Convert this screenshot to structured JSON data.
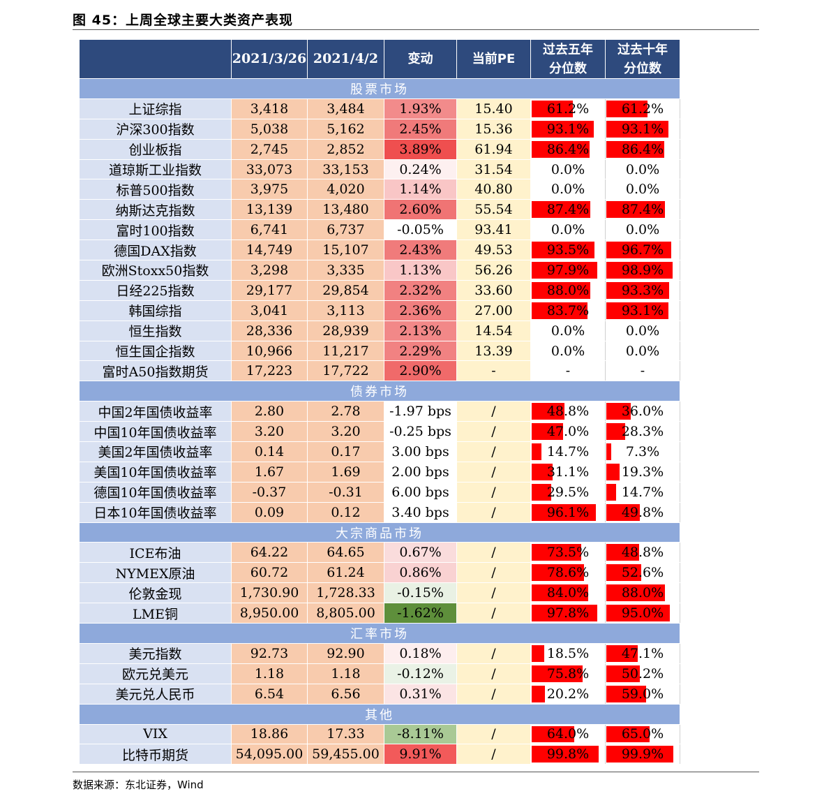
{
  "figure_title": "图 45：上周全球主要大类资产表现",
  "source": "数据来源：东北证券，Wind",
  "headers": {
    "name": "",
    "date1": "2021/3/26",
    "date2": "2021/4/2",
    "change": "变动",
    "pe": "当前PE",
    "pct5_line1": "过去五年",
    "pct5_line2": "分位数",
    "pct10_line1": "过去十年",
    "pct10_line2": "分位数"
  },
  "colors": {
    "header_bg": "#2e4a7d",
    "section_bg": "#8ea9db",
    "name_bg": "#d9e1f2",
    "value_bg": "#f8cbad",
    "pe_bg": "#fff2cc",
    "bar": "#ff0000"
  },
  "sections": [
    {
      "title": "股票市场",
      "rows": [
        {
          "name": "上证综指",
          "v1": "3,418",
          "v2": "3,484",
          "chg": "1.93%",
          "chg_color": "#f28b8b",
          "pe": "15.40",
          "p5": "61.2%",
          "p5v": 0.612,
          "p10": "61.2%",
          "p10v": 0.612
        },
        {
          "name": "沪深300指数",
          "v1": "5,038",
          "v2": "5,162",
          "chg": "2.45%",
          "chg_color": "#f07a7a",
          "pe": "15.36",
          "p5": "93.1%",
          "p5v": 0.931,
          "p10": "93.1%",
          "p10v": 0.931
        },
        {
          "name": "创业板指",
          "v1": "2,745",
          "v2": "2,852",
          "chg": "3.89%",
          "chg_color": "#ef4f4f",
          "pe": "61.94",
          "p5": "86.4%",
          "p5v": 0.864,
          "p10": "86.4%",
          "p10v": 0.864
        },
        {
          "name": "道琼斯工业指数",
          "v1": "33,073",
          "v2": "33,153",
          "chg": "0.24%",
          "chg_color": "#fdf0f0",
          "pe": "31.54",
          "p5": "0.0%",
          "p5v": 0,
          "p10": "0.0%",
          "p10v": 0
        },
        {
          "name": "标普500指数",
          "v1": "3,975",
          "v2": "4,020",
          "chg": "1.14%",
          "chg_color": "#f9c6c6",
          "pe": "40.80",
          "p5": "0.0%",
          "p5v": 0,
          "p10": "0.0%",
          "p10v": 0
        },
        {
          "name": "纳斯达克指数",
          "v1": "13,139",
          "v2": "13,480",
          "chg": "2.60%",
          "chg_color": "#f07474",
          "pe": "55.54",
          "p5": "87.4%",
          "p5v": 0.874,
          "p10": "87.4%",
          "p10v": 0.874
        },
        {
          "name": "富时100指数",
          "v1": "6,741",
          "v2": "6,737",
          "chg": "-0.05%",
          "chg_color": "#ffffff",
          "pe": "93.41",
          "p5": "0.0%",
          "p5v": 0,
          "p10": "0.0%",
          "p10v": 0
        },
        {
          "name": "德国DAX指数",
          "v1": "14,749",
          "v2": "15,107",
          "chg": "2.43%",
          "chg_color": "#f07b7b",
          "pe": "49.53",
          "p5": "93.5%",
          "p5v": 0.935,
          "p10": "96.7%",
          "p10v": 0.967
        },
        {
          "name": "欧洲Stoxx50指数",
          "v1": "3,298",
          "v2": "3,335",
          "chg": "1.13%",
          "chg_color": "#f9c7c7",
          "pe": "56.26",
          "p5": "97.9%",
          "p5v": 0.979,
          "p10": "98.9%",
          "p10v": 0.989
        },
        {
          "name": "日经225指数",
          "v1": "29,177",
          "v2": "29,854",
          "chg": "2.32%",
          "chg_color": "#f18181",
          "pe": "33.60",
          "p5": "88.0%",
          "p5v": 0.88,
          "p10": "93.3%",
          "p10v": 0.933
        },
        {
          "name": "韩国综指",
          "v1": "3,041",
          "v2": "3,113",
          "chg": "2.36%",
          "chg_color": "#f17f7f",
          "pe": "27.00",
          "p5": "83.7%",
          "p5v": 0.837,
          "p10": "93.1%",
          "p10v": 0.931
        },
        {
          "name": "恒生指数",
          "v1": "28,336",
          "v2": "28,939",
          "chg": "2.13%",
          "chg_color": "#f28888",
          "pe": "14.54",
          "p5": "0.0%",
          "p5v": 0,
          "p10": "0.0%",
          "p10v": 0
        },
        {
          "name": "恒生国企指数",
          "v1": "10,966",
          "v2": "11,217",
          "chg": "2.29%",
          "chg_color": "#f18282",
          "pe": "13.39",
          "p5": "0.0%",
          "p5v": 0,
          "p10": "0.0%",
          "p10v": 0
        },
        {
          "name": "富时A50指数期货",
          "v1": "17,223",
          "v2": "17,722",
          "chg": "2.90%",
          "chg_color": "#f06a6a",
          "pe": "-",
          "p5": "-",
          "p5v": 0,
          "p10": "-",
          "p10v": 0
        }
      ]
    },
    {
      "title": "债券市场",
      "rows": [
        {
          "name": "中国2年国债收益率",
          "v1": "2.80",
          "v2": "2.78",
          "chg": "-1.97 bps",
          "chg_color": "#ffffff",
          "pe": "/",
          "p5": "48.8%",
          "p5v": 0.488,
          "p10": "36.0%",
          "p10v": 0.36
        },
        {
          "name": "中国10年国债收益率",
          "v1": "3.20",
          "v2": "3.20",
          "chg": "-0.25 bps",
          "chg_color": "#ffffff",
          "pe": "/",
          "p5": "47.0%",
          "p5v": 0.47,
          "p10": "28.3%",
          "p10v": 0.283
        },
        {
          "name": "美国2年国债收益率",
          "v1": "0.14",
          "v2": "0.17",
          "chg": "3.00 bps",
          "chg_color": "#ffffff",
          "pe": "/",
          "p5": "14.7%",
          "p5v": 0.147,
          "p10": "7.3%",
          "p10v": 0.073
        },
        {
          "name": "美国10年国债收益率",
          "v1": "1.67",
          "v2": "1.69",
          "chg": "2.00 bps",
          "chg_color": "#ffffff",
          "pe": "/",
          "p5": "31.1%",
          "p5v": 0.311,
          "p10": "19.3%",
          "p10v": 0.193
        },
        {
          "name": "德国10年国债收益率",
          "v1": "-0.37",
          "v2": "-0.31",
          "chg": "6.00 bps",
          "chg_color": "#ffffff",
          "pe": "/",
          "p5": "29.5%",
          "p5v": 0.295,
          "p10": "14.7%",
          "p10v": 0.147
        },
        {
          "name": "日本10年国债收益率",
          "v1": "0.09",
          "v2": "0.12",
          "chg": "3.40 bps",
          "chg_color": "#ffffff",
          "pe": "/",
          "p5": "96.1%",
          "p5v": 0.961,
          "p10": "49.8%",
          "p10v": 0.498
        }
      ]
    },
    {
      "title": "大宗商品市场",
      "rows": [
        {
          "name": "ICE布油",
          "v1": "64.22",
          "v2": "64.65",
          "chg": "0.67%",
          "chg_color": "#fadcdc",
          "pe": "/",
          "p5": "73.5%",
          "p5v": 0.735,
          "p10": "48.8%",
          "p10v": 0.488
        },
        {
          "name": "NYMEX原油",
          "v1": "60.72",
          "v2": "61.24",
          "chg": "0.86%",
          "chg_color": "#f9d2d2",
          "pe": "/",
          "p5": "78.6%",
          "p5v": 0.786,
          "p10": "52.6%",
          "p10v": 0.526
        },
        {
          "name": "伦敦金现",
          "v1": "1,730.90",
          "v2": "1,728.33",
          "chg": "-0.15%",
          "chg_color": "#e9f1e4",
          "pe": "/",
          "p5": "84.0%",
          "p5v": 0.84,
          "p10": "88.0%",
          "p10v": 0.88
        },
        {
          "name": "LME铜",
          "v1": "8,950.00",
          "v2": "8,805.00",
          "chg": "-1.62%",
          "chg_color": "#5e8f3b",
          "pe": "/",
          "p5": "97.8%",
          "p5v": 0.978,
          "p10": "95.0%",
          "p10v": 0.95
        }
      ]
    },
    {
      "title": "汇率市场",
      "rows": [
        {
          "name": "美元指数",
          "v1": "92.73",
          "v2": "92.90",
          "chg": "0.18%",
          "chg_color": "#fdeeee",
          "pe": "/",
          "p5": "18.5%",
          "p5v": 0.185,
          "p10": "47.1%",
          "p10v": 0.471
        },
        {
          "name": "欧元兑美元",
          "v1": "1.18",
          "v2": "1.18",
          "chg": "-0.12%",
          "chg_color": "#eaf2e6",
          "pe": "/",
          "p5": "75.8%",
          "p5v": 0.758,
          "p10": "50.2%",
          "p10v": 0.502
        },
        {
          "name": "美元兑人民币",
          "v1": "6.54",
          "v2": "6.56",
          "chg": "0.31%",
          "chg_color": "#fbe4e4",
          "pe": "/",
          "p5": "20.2%",
          "p5v": 0.202,
          "p10": "59.0%",
          "p10v": 0.59
        }
      ]
    },
    {
      "title": "其他",
      "rows": [
        {
          "name": "VIX",
          "v1": "18.86",
          "v2": "17.33",
          "chg": "-8.11%",
          "chg_color": "#a9c995",
          "pe": "/",
          "p5": "64.0%",
          "p5v": 0.64,
          "p10": "65.0%",
          "p10v": 0.65
        },
        {
          "name": "比特币期货",
          "v1": "54,095.00",
          "v2": "59,455.00",
          "chg": "9.91%",
          "chg_color": "#f25a5a",
          "pe": "/",
          "p5": "99.8%",
          "p5v": 0.998,
          "p10": "99.9%",
          "p10v": 0.999
        }
      ]
    }
  ]
}
